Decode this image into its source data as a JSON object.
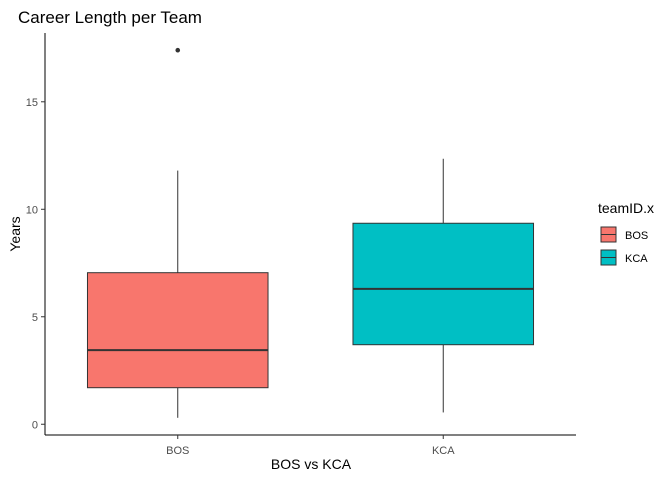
{
  "chart_data": {
    "type": "boxplot",
    "title": "Career Length per Team",
    "xlabel": "BOS vs KCA",
    "ylabel": "Years",
    "ylim": [
      -0.5,
      18.2
    ],
    "yticks": [
      0,
      5,
      10,
      15
    ],
    "categories": [
      "BOS",
      "KCA"
    ],
    "boxes": [
      {
        "category": "BOS",
        "min": 0.3,
        "q1": 1.7,
        "median": 3.45,
        "q3": 7.05,
        "max": 11.8,
        "outliers": [
          17.4
        ],
        "color": "#F8766D"
      },
      {
        "category": "KCA",
        "min": 0.55,
        "q1": 3.7,
        "median": 6.3,
        "q3": 9.35,
        "max": 12.35,
        "outliers": [],
        "color": "#00BFC4"
      }
    ],
    "legend": {
      "title": "teamID.x",
      "placement": "right",
      "items": [
        {
          "label": "BOS",
          "color": "#F8766D"
        },
        {
          "label": "KCA",
          "color": "#00BFC4"
        }
      ]
    },
    "grid": false
  }
}
